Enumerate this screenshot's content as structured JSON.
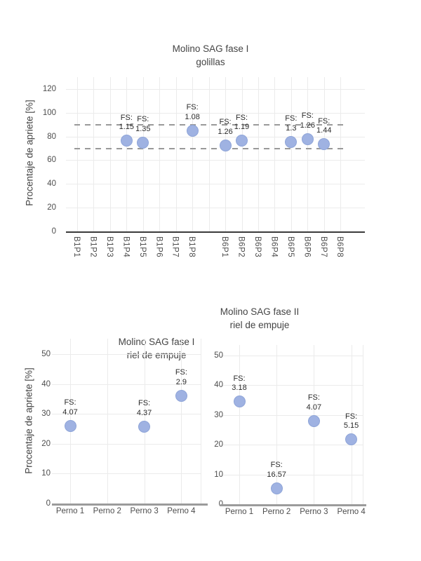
{
  "colors": {
    "marker_fill": "#9fb2e2",
    "marker_edge": "#8fa5d8",
    "grid": "#ebebeb",
    "axis_dark": "#3b3b3b",
    "axis_gray": "#9b9b9b",
    "dash_line": "#999999",
    "title_text": "#444444",
    "tick_text": "#4d4d4d",
    "annotation_text": "#2b2b2b"
  },
  "chart_data": [
    {
      "id": "fase1-golillas",
      "type": "scatter",
      "title": [
        "Molino SAG fase I",
        "golillas"
      ],
      "ylabel": "Procentaje de apriete [%]",
      "ylim": [
        0,
        130
      ],
      "yticks": [
        0,
        20,
        40,
        60,
        80,
        100,
        120
      ],
      "grid": "on",
      "categories": [
        "B1P1",
        "B1P2",
        "B1P3",
        "B1P4",
        "B1P5",
        "B1P6",
        "B1P7",
        "B1P8",
        "",
        "B6P1",
        "B6P2",
        "B6P3",
        "B6P4",
        "B6P5",
        "B6P6",
        "B6P7",
        "B6P8"
      ],
      "reference_lines": [
        90,
        70
      ],
      "points": [
        {
          "category": "B1P4",
          "value": 76.5,
          "annotation": [
            "FS:",
            "1.15"
          ]
        },
        {
          "category": "B1P5",
          "value": 75,
          "annotation": [
            "FS:",
            "1.35"
          ]
        },
        {
          "category": "B1P8",
          "value": 85,
          "annotation": [
            "FS:",
            "1.08"
          ]
        },
        {
          "category": "B6P1",
          "value": 72.5,
          "annotation": [
            "FS:",
            "1.26"
          ]
        },
        {
          "category": "B6P2",
          "value": 76.5,
          "annotation": [
            "FS:",
            "1.19"
          ]
        },
        {
          "category": "B6P5",
          "value": 75.5,
          "annotation": [
            "FS:",
            "1.3"
          ]
        },
        {
          "category": "B6P6",
          "value": 78,
          "annotation": [
            "FS:",
            "1.26"
          ]
        },
        {
          "category": "B6P7",
          "value": 73.5,
          "annotation": [
            "FS:",
            "1.44"
          ]
        }
      ]
    },
    {
      "id": "fase1-riel-de-empuje",
      "type": "scatter",
      "title": [
        "Molino SAG fase I",
        "riel de empuje"
      ],
      "ylabel": "Procentaje de apriete [%]",
      "ylim": [
        0,
        55
      ],
      "yticks": [
        0,
        10,
        20,
        30,
        40,
        50
      ],
      "grid": "on",
      "categories": [
        "Perno 1",
        "Perno 2",
        "Perno 3",
        "Perno 4"
      ],
      "reference_lines": [],
      "points": [
        {
          "category": "Perno 1",
          "value": 26,
          "annotation": [
            "FS:",
            "4.07"
          ]
        },
        {
          "category": "Perno 3",
          "value": 25.8,
          "annotation": [
            "FS:",
            "4.37"
          ]
        },
        {
          "category": "Perno 4",
          "value": 36.1,
          "annotation": [
            "FS:",
            "2.9"
          ]
        }
      ]
    },
    {
      "id": "fase2-riel-de-empuje",
      "type": "scatter",
      "title": [
        "Molino SAG fase II",
        "riel de empuje"
      ],
      "ylabel": "",
      "ylim": [
        0,
        53.5
      ],
      "yticks": [
        0,
        10,
        20,
        30,
        40,
        50
      ],
      "grid": "on",
      "categories": [
        "Perno 1",
        "Perno 2",
        "Perno 3",
        "Perno 4"
      ],
      "reference_lines": [],
      "points": [
        {
          "category": "Perno 1",
          "value": 34.5,
          "annotation": [
            "FS:",
            "3.18"
          ]
        },
        {
          "category": "Perno 2",
          "value": 5.4,
          "annotation": [
            "FS:",
            "16.57"
          ]
        },
        {
          "category": "Perno 3",
          "value": 28,
          "annotation": [
            "FS:",
            "4.07"
          ]
        },
        {
          "category": "Perno 4",
          "value": 21.7,
          "annotation": [
            "FS:",
            "5.15"
          ]
        }
      ]
    }
  ]
}
